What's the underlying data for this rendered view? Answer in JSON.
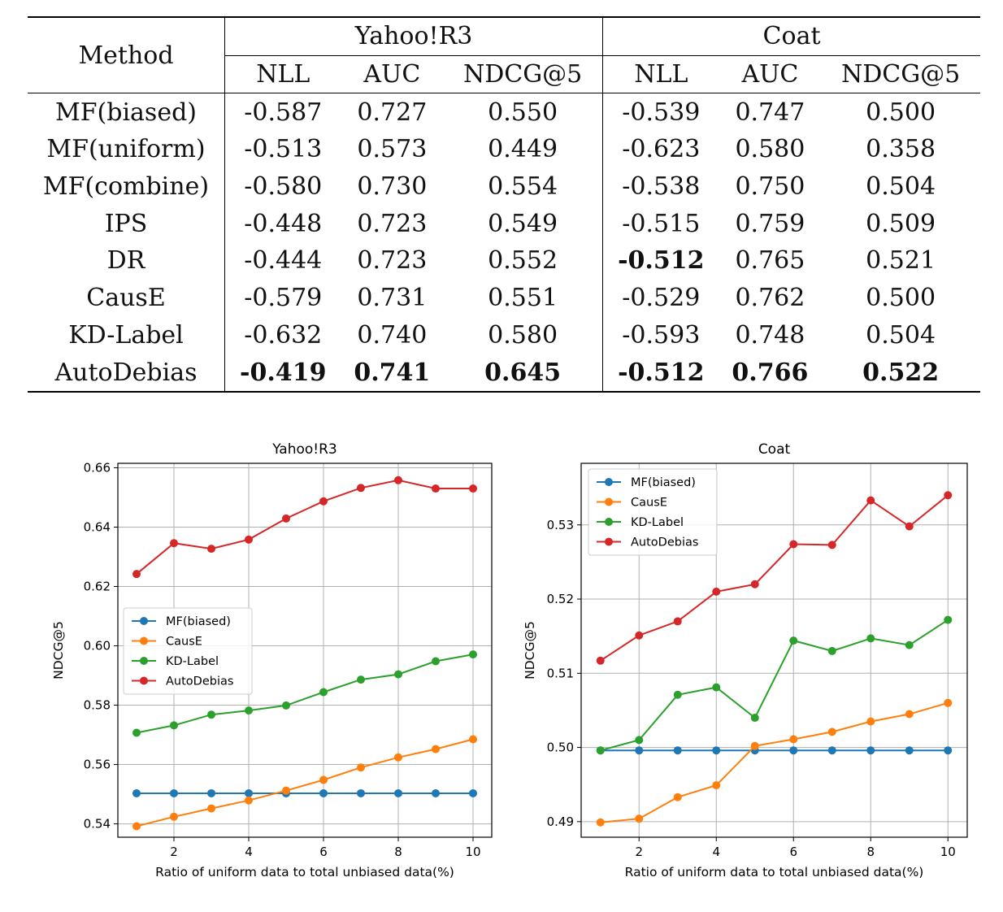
{
  "table": {
    "method_header": "Method",
    "groups": [
      "Yahoo!R3",
      "Coat"
    ],
    "metrics": [
      "NLL",
      "AUC",
      "NDCG@5",
      "NLL",
      "AUC",
      "NDCG@5"
    ],
    "rows": [
      {
        "method": "MF(biased)",
        "values": [
          "-0.587",
          "0.727",
          "0.550",
          "-0.539",
          "0.747",
          "0.500"
        ],
        "bold": [
          false,
          false,
          false,
          false,
          false,
          false
        ]
      },
      {
        "method": "MF(uniform)",
        "values": [
          "-0.513",
          "0.573",
          "0.449",
          "-0.623",
          "0.580",
          "0.358"
        ],
        "bold": [
          false,
          false,
          false,
          false,
          false,
          false
        ]
      },
      {
        "method": "MF(combine)",
        "values": [
          "-0.580",
          "0.730",
          "0.554",
          "-0.538",
          "0.750",
          "0.504"
        ],
        "bold": [
          false,
          false,
          false,
          false,
          false,
          false
        ]
      },
      {
        "method": "IPS",
        "values": [
          "-0.448",
          "0.723",
          "0.549",
          "-0.515",
          "0.759",
          "0.509"
        ],
        "bold": [
          false,
          false,
          false,
          false,
          false,
          false
        ]
      },
      {
        "method": "DR",
        "values": [
          "-0.444",
          "0.723",
          "0.552",
          "-0.512",
          "0.765",
          "0.521"
        ],
        "bold": [
          false,
          false,
          false,
          true,
          false,
          false
        ]
      },
      {
        "method": "CausE",
        "values": [
          "-0.579",
          "0.731",
          "0.551",
          "-0.529",
          "0.762",
          "0.500"
        ],
        "bold": [
          false,
          false,
          false,
          false,
          false,
          false
        ]
      },
      {
        "method": "KD-Label",
        "values": [
          "-0.632",
          "0.740",
          "0.580",
          "-0.593",
          "0.748",
          "0.504"
        ],
        "bold": [
          false,
          false,
          false,
          false,
          false,
          false
        ]
      },
      {
        "method": "AutoDebias",
        "values": [
          "-0.419",
          "0.741",
          "0.645",
          "-0.512",
          "0.766",
          "0.522"
        ],
        "bold": [
          true,
          true,
          true,
          true,
          true,
          true
        ]
      }
    ]
  },
  "colors": {
    "MF(biased)": "#1f77b4",
    "CausE": "#ff7f0e",
    "KD-Label": "#2ca02c",
    "AutoDebias": "#d62728"
  },
  "chart_data": [
    {
      "type": "line",
      "title": "Yahoo!R3",
      "xlabel": "Ratio of uniform data to total unbiased data(%)",
      "ylabel": "NDCG@5",
      "x": [
        1,
        2,
        3,
        4,
        5,
        6,
        7,
        8,
        9,
        10
      ],
      "xlim": [
        0.5,
        10.5
      ],
      "ylim": [
        0.5355,
        0.6615
      ],
      "xticks": [
        2,
        4,
        6,
        8,
        10
      ],
      "yticks": [
        0.54,
        0.56,
        0.58,
        0.6,
        0.62,
        0.64,
        0.66
      ],
      "ytick_labels": [
        "0.54",
        "0.56",
        "0.58",
        "0.60",
        "0.62",
        "0.64",
        "0.66"
      ],
      "grid": true,
      "legend_position": "center-left",
      "series": [
        {
          "name": "MF(biased)",
          "values": [
            0.5503,
            0.5503,
            0.5503,
            0.5503,
            0.5503,
            0.5503,
            0.5503,
            0.5503,
            0.5503,
            0.5503
          ]
        },
        {
          "name": "CausE",
          "values": [
            0.5392,
            0.5424,
            0.5452,
            0.5479,
            0.5512,
            0.5548,
            0.559,
            0.5624,
            0.5652,
            0.5685
          ]
        },
        {
          "name": "KD-Label",
          "values": [
            0.5707,
            0.5732,
            0.5768,
            0.5782,
            0.5799,
            0.5844,
            0.5886,
            0.5904,
            0.5948,
            0.5971
          ]
        },
        {
          "name": "AutoDebias",
          "values": [
            0.6242,
            0.6346,
            0.6327,
            0.6358,
            0.6429,
            0.6487,
            0.6532,
            0.6558,
            0.653,
            0.653
          ]
        }
      ]
    },
    {
      "type": "line",
      "title": "Coat",
      "xlabel": "Ratio of uniform data to total unbiased data(%)",
      "ylabel": "NDCG@5",
      "x": [
        1,
        2,
        3,
        4,
        5,
        6,
        7,
        8,
        9,
        10
      ],
      "xlim": [
        0.5,
        10.5
      ],
      "ylim": [
        0.4879,
        0.5383
      ],
      "xticks": [
        2,
        4,
        6,
        8,
        10
      ],
      "yticks": [
        0.49,
        0.5,
        0.51,
        0.52,
        0.53
      ],
      "ytick_labels": [
        "0.49",
        "0.50",
        "0.51",
        "0.52",
        "0.53"
      ],
      "grid": true,
      "legend_position": "top-left",
      "series": [
        {
          "name": "MF(biased)",
          "values": [
            0.4996,
            0.4996,
            0.4996,
            0.4996,
            0.4996,
            0.4996,
            0.4996,
            0.4996,
            0.4996,
            0.4996
          ]
        },
        {
          "name": "CausE",
          "values": [
            0.4899,
            0.4904,
            0.4933,
            0.4949,
            0.5002,
            0.5011,
            0.5021,
            0.5035,
            0.5045,
            0.506
          ]
        },
        {
          "name": "KD-Label",
          "values": [
            0.4996,
            0.501,
            0.5071,
            0.5081,
            0.504,
            0.5144,
            0.513,
            0.5147,
            0.5138,
            0.5172
          ]
        },
        {
          "name": "AutoDebias",
          "values": [
            0.5117,
            0.5151,
            0.517,
            0.521,
            0.522,
            0.5274,
            0.5273,
            0.5333,
            0.5298,
            0.534
          ]
        }
      ]
    }
  ]
}
